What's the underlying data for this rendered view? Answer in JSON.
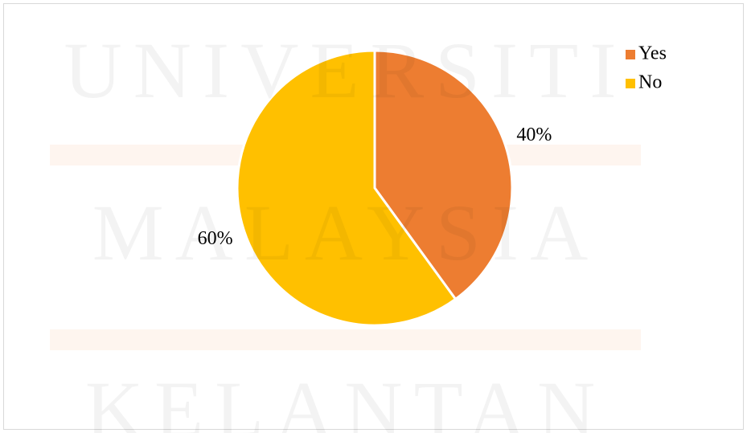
{
  "chart_data": {
    "type": "pie",
    "watermark": [
      "UNIVERSITI",
      "MALAYSIA",
      "KELANTAN"
    ],
    "categories": [
      "Yes",
      "No"
    ],
    "values": [
      40,
      60
    ],
    "value_labels": [
      "40%",
      "60%"
    ],
    "colors": [
      "#ed7d31",
      "#ffc000"
    ],
    "legend": "top-right"
  }
}
